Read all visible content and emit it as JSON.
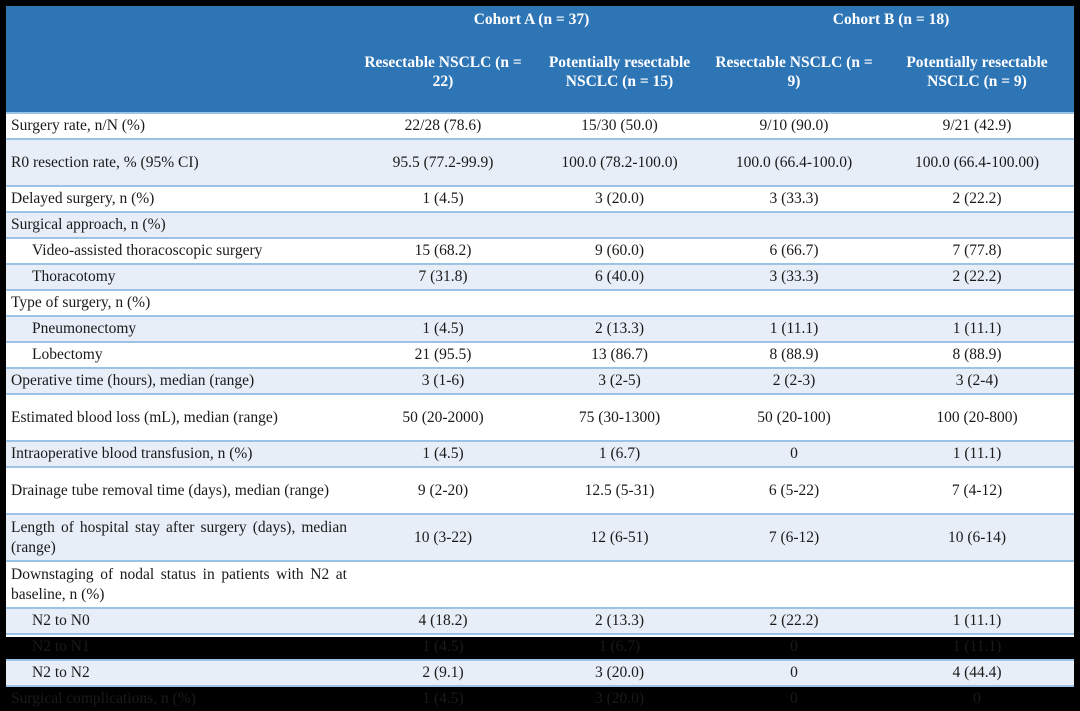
{
  "colors": {
    "frame_bg": "#000000",
    "header_bg": "#2E75B6",
    "header_text": "#FFFFFF",
    "row_shaded_bg": "#E7EEF8",
    "row_border": "#9CC2E5",
    "body_text": "#1A1A1A"
  },
  "table": {
    "header": {
      "corner_label": "",
      "groups": [
        {
          "label": "Cohort A (n = 37)"
        },
        {
          "label": "Cohort B (n = 18)"
        }
      ],
      "columns": [
        "Resectable NSCLC (n = 22)",
        "Potentially resectable NSCLC (n = 15)",
        "Resectable NSCLC (n = 9)",
        "Potentially resectable NSCLC (n = 9)"
      ]
    },
    "rows": [
      {
        "label": "Surgery rate, n/N (%)",
        "indent": false,
        "tall": false,
        "values": [
          "22/28 (78.6)",
          "15/30 (50.0)",
          "9/10 (90.0)",
          "9/21 (42.9)"
        ]
      },
      {
        "label": "R0 resection rate, % (95% CI)",
        "indent": false,
        "tall": true,
        "values": [
          "95.5 (77.2-99.9)",
          "100.0 (78.2-100.0)",
          "100.0 (66.4-100.0)",
          "100.0 (66.4-100.00)"
        ]
      },
      {
        "label": "Delayed surgery, n (%)",
        "indent": false,
        "tall": false,
        "values": [
          "1 (4.5)",
          "3 (20.0)",
          "3 (33.3)",
          "2 (22.2)"
        ]
      },
      {
        "label": "Surgical approach, n (%)",
        "indent": false,
        "tall": false,
        "values": [
          "",
          "",
          "",
          ""
        ]
      },
      {
        "label": "Video-assisted thoracoscopic surgery",
        "indent": true,
        "tall": false,
        "values": [
          "15 (68.2)",
          "9 (60.0)",
          "6 (66.7)",
          "7 (77.8)"
        ]
      },
      {
        "label": "Thoracotomy",
        "indent": true,
        "tall": false,
        "values": [
          "7 (31.8)",
          "6 (40.0)",
          "3 (33.3)",
          "2 (22.2)"
        ]
      },
      {
        "label": "Type of surgery, n (%)",
        "indent": false,
        "tall": false,
        "values": [
          "",
          "",
          "",
          ""
        ]
      },
      {
        "label": "Pneumonectomy",
        "indent": true,
        "tall": false,
        "values": [
          "1 (4.5)",
          "2 (13.3)",
          "1 (11.1)",
          "1 (11.1)"
        ]
      },
      {
        "label": "Lobectomy",
        "indent": true,
        "tall": false,
        "values": [
          "21 (95.5)",
          "13 (86.7)",
          "8 (88.9)",
          "8 (88.9)"
        ]
      },
      {
        "label": "Operative time (hours), median (range)",
        "indent": false,
        "tall": false,
        "values": [
          "3 (1-6)",
          "3 (2-5)",
          "2 (2-3)",
          "3 (2-4)"
        ]
      },
      {
        "label": "Estimated blood loss (mL), median (range)",
        "indent": false,
        "tall": true,
        "values": [
          "50 (20-2000)",
          "75 (30-1300)",
          "50 (20-100)",
          "100 (20-800)"
        ]
      },
      {
        "label": "Intraoperative blood transfusion, n (%)",
        "indent": false,
        "tall": false,
        "values": [
          "1 (4.5)",
          "1 (6.7)",
          "0",
          "1 (11.1)"
        ]
      },
      {
        "label": "Drainage tube removal time (days), median (range)",
        "indent": false,
        "tall": true,
        "values": [
          "9 (2-20)",
          "12.5 (5-31)",
          "6 (5-22)",
          "7 (4-12)"
        ]
      },
      {
        "label": "Length of hospital stay after surgery (days), median (range)",
        "indent": false,
        "tall": true,
        "values": [
          "10 (3-22)",
          "12 (6-51)",
          "7 (6-12)",
          "10 (6-14)"
        ]
      },
      {
        "label": "Downstaging of nodal status in patients with N2 at baseline, n (%)",
        "indent": false,
        "tall": true,
        "values": [
          "",
          "",
          "",
          ""
        ]
      },
      {
        "label": "N2 to N0",
        "indent": true,
        "tall": false,
        "values": [
          "4 (18.2)",
          "2 (13.3)",
          "2 (22.2)",
          "1 (11.1)"
        ]
      },
      {
        "label": "N2 to N1",
        "indent": true,
        "tall": false,
        "values": [
          "1 (4.5)",
          "1 (6.7)",
          "0",
          "1 (11.1)"
        ]
      },
      {
        "label": "N2 to N2",
        "indent": true,
        "tall": false,
        "values": [
          "2 (9.1)",
          "3 (20.0)",
          "0",
          "4 (44.4)"
        ]
      },
      {
        "label": "Surgical complications, n (%)",
        "indent": false,
        "tall": false,
        "values": [
          "1 (4.5)",
          "3 (20.0)",
          "0",
          "0"
        ]
      }
    ]
  }
}
